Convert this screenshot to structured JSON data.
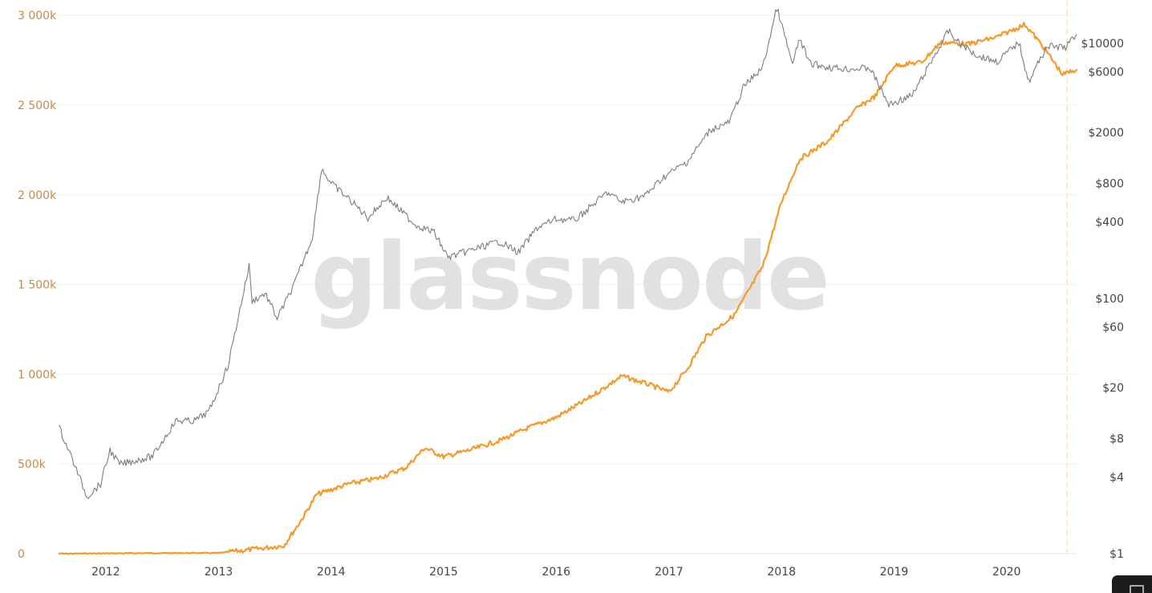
{
  "watermark": "glassnode",
  "chart_data": {
    "type": "line",
    "x_ticks": [
      "2012",
      "2013",
      "2014",
      "2015",
      "2016",
      "2017",
      "2018",
      "2019",
      "2020"
    ],
    "y_left": {
      "ticks": [
        0,
        500000,
        1000000,
        1500000,
        2000000,
        2500000,
        3000000
      ],
      "tick_labels": [
        "0",
        "500k",
        "1 000k",
        "1 500k",
        "2 000k",
        "2 500k",
        "3 000k"
      ],
      "range": [
        0,
        3050000
      ]
    },
    "y_right": {
      "scale": "log",
      "ticks": [
        1,
        4,
        8,
        20,
        60,
        100,
        400,
        800,
        2000,
        6000,
        10000
      ],
      "tick_labels": [
        "$1",
        "$4",
        "$8",
        "$20",
        "$60",
        "$100",
        "$400",
        "$800",
        "$2000",
        "$6000",
        "$10000"
      ],
      "range": [
        1,
        19500
      ]
    },
    "x_range": [
      "2011-08-01",
      "2020-08-15"
    ],
    "grid": true,
    "colors": {
      "orange": "#f5992b",
      "price": "#7d7d7d",
      "grid": "#eeeeee",
      "left_axis": "#c58a4a",
      "right_axis": "#444444",
      "marker": "#fbe3b8"
    },
    "series": [
      {
        "axis": "left",
        "color": "#f5992b",
        "points": [
          [
            "2011-08-01",
            0
          ],
          [
            "2012-06-01",
            3000
          ],
          [
            "2013-01-01",
            4000
          ],
          [
            "2013-04-01",
            20000
          ],
          [
            "2013-08-01",
            45000
          ],
          [
            "2013-10-01",
            200000
          ],
          [
            "2013-11-15",
            330000
          ],
          [
            "2014-03-01",
            390000
          ],
          [
            "2014-06-01",
            420000
          ],
          [
            "2014-09-01",
            480000
          ],
          [
            "2014-11-01",
            590000
          ],
          [
            "2015-01-01",
            540000
          ],
          [
            "2015-04-01",
            580000
          ],
          [
            "2015-07-01",
            630000
          ],
          [
            "2015-10-01",
            700000
          ],
          [
            "2016-01-01",
            760000
          ],
          [
            "2016-04-01",
            850000
          ],
          [
            "2016-08-01",
            990000
          ],
          [
            "2016-11-01",
            940000
          ],
          [
            "2017-01-01",
            900000
          ],
          [
            "2017-03-01",
            1030000
          ],
          [
            "2017-05-01",
            1210000
          ],
          [
            "2017-08-01",
            1330000
          ],
          [
            "2017-11-01",
            1600000
          ],
          [
            "2018-01-01",
            1960000
          ],
          [
            "2018-03-01",
            2200000
          ],
          [
            "2018-06-01",
            2300000
          ],
          [
            "2018-09-01",
            2480000
          ],
          [
            "2018-11-01",
            2550000
          ],
          [
            "2019-01-01",
            2720000
          ],
          [
            "2019-04-01",
            2740000
          ],
          [
            "2019-06-01",
            2850000
          ],
          [
            "2019-09-01",
            2840000
          ],
          [
            "2019-12-01",
            2880000
          ],
          [
            "2020-03-01",
            2950000
          ],
          [
            "2020-05-01",
            2820000
          ],
          [
            "2020-07-01",
            2670000
          ],
          [
            "2020-08-15",
            2700000
          ]
        ]
      },
      {
        "axis": "right",
        "color": "#7d7d7d",
        "points": [
          [
            "2011-08-01",
            10
          ],
          [
            "2011-09-15",
            5.5
          ],
          [
            "2011-11-01",
            2.8
          ],
          [
            "2011-12-15",
            3.5
          ],
          [
            "2012-01-15",
            6.5
          ],
          [
            "2012-02-15",
            5
          ],
          [
            "2012-06-01",
            5.8
          ],
          [
            "2012-08-15",
            11
          ],
          [
            "2012-10-15",
            11
          ],
          [
            "2012-12-01",
            13
          ],
          [
            "2013-02-01",
            30
          ],
          [
            "2013-04-10",
            180
          ],
          [
            "2013-04-20",
            95
          ],
          [
            "2013-06-01",
            110
          ],
          [
            "2013-07-10",
            70
          ],
          [
            "2013-09-01",
            125
          ],
          [
            "2013-11-01",
            300
          ],
          [
            "2013-12-01",
            1050
          ],
          [
            "2014-01-01",
            800
          ],
          [
            "2014-03-01",
            600
          ],
          [
            "2014-05-01",
            430
          ],
          [
            "2014-07-01",
            620
          ],
          [
            "2014-10-01",
            380
          ],
          [
            "2014-12-01",
            330
          ],
          [
            "2015-01-15",
            210
          ],
          [
            "2015-04-01",
            240
          ],
          [
            "2015-07-01",
            280
          ],
          [
            "2015-09-01",
            230
          ],
          [
            "2015-11-01",
            360
          ],
          [
            "2016-01-01",
            420
          ],
          [
            "2016-03-01",
            410
          ],
          [
            "2016-06-15",
            680
          ],
          [
            "2016-08-01",
            570
          ],
          [
            "2016-10-15",
            640
          ],
          [
            "2016-12-15",
            900
          ],
          [
            "2017-03-01",
            1180
          ],
          [
            "2017-05-15",
            2100
          ],
          [
            "2017-07-15",
            2400
          ],
          [
            "2017-09-01",
            4600
          ],
          [
            "2017-11-01",
            6500
          ],
          [
            "2017-12-17",
            19000
          ],
          [
            "2018-02-06",
            6800
          ],
          [
            "2018-03-01",
            11000
          ],
          [
            "2018-04-01",
            7000
          ],
          [
            "2018-06-01",
            6500
          ],
          [
            "2018-08-01",
            6300
          ],
          [
            "2018-10-15",
            6400
          ],
          [
            "2018-12-15",
            3300
          ],
          [
            "2019-03-01",
            3900
          ],
          [
            "2019-06-26",
            12500
          ],
          [
            "2019-08-01",
            10000
          ],
          [
            "2019-10-01",
            8000
          ],
          [
            "2019-12-01",
            7200
          ],
          [
            "2020-02-10",
            10200
          ],
          [
            "2020-03-13",
            5000
          ],
          [
            "2020-05-10",
            9500
          ],
          [
            "2020-07-10",
            9300
          ],
          [
            "2020-08-15",
            11800
          ]
        ]
      }
    ]
  }
}
